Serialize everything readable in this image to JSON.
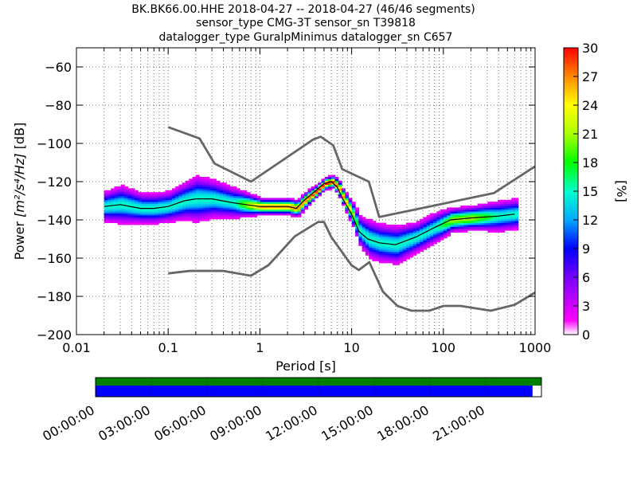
{
  "title": {
    "line1": "BK.BK66.00.HHE   2018-04-27 -- 2018-04-27  (46/46 segments)",
    "line2": "sensor_type CMG-3T sensor_sn T39818",
    "line3": "datalogger_type GuralpMinimus datalogger_sn C657"
  },
  "chart_data": {
    "type": "heatmap",
    "subtype": "ppsd",
    "x_scale": "log",
    "xlim": [
      0.01,
      1000
    ],
    "ylim": [
      -200,
      -50
    ],
    "xlabel": "Period [s]",
    "ylabel_prefix": "Power ",
    "ylabel_units": "[m²/s⁴/Hz]",
    "ylabel_suffix": " [dB]",
    "x_ticks": [
      0.01,
      0.1,
      1,
      10,
      100,
      1000
    ],
    "x_tick_labels": [
      "0.01",
      "0.1",
      "1",
      "10",
      "100",
      "1000"
    ],
    "y_ticks": [
      -200,
      -180,
      -160,
      -140,
      -120,
      -100,
      -80,
      -60
    ],
    "y_tick_labels": [
      "−200",
      "−180",
      "−160",
      "−140",
      "−120",
      "−100",
      "−80",
      "−60"
    ],
    "grid": true,
    "colorbar": {
      "label": "[%]",
      "range": [
        0,
        30
      ],
      "ticks": [
        0,
        3,
        6,
        9,
        12,
        15,
        18,
        21,
        24,
        27,
        30
      ],
      "tick_labels": [
        "0",
        "3",
        "6",
        "9",
        "12",
        "15",
        "18",
        "21",
        "24",
        "27",
        "30"
      ],
      "colormap": "pqlx"
    },
    "series": [
      {
        "role": "noise-model-high",
        "color": "#666666",
        "x": [
          0.1,
          0.22,
          0.32,
          0.8,
          3.8,
          4.6,
          6.3,
          7.9,
          15.4,
          20,
          354.8,
          1000
        ],
        "y": [
          -91.5,
          -97.4,
          -110.5,
          -120,
          -98,
          -96.5,
          -101,
          -113.5,
          -120,
          -138.5,
          -126,
          -112
        ]
      },
      {
        "role": "noise-model-low",
        "color": "#666666",
        "x": [
          0.1,
          0.17,
          0.4,
          0.8,
          1.24,
          2.4,
          4.3,
          5,
          6,
          10,
          12,
          15.6,
          21.9,
          31.6,
          45,
          70,
          101,
          154,
          328,
          600,
          1000
        ],
        "y": [
          -168,
          -166.7,
          -166.7,
          -169.2,
          -163.7,
          -148.6,
          -141.1,
          -141.1,
          -149.0,
          -163.8,
          -166.2,
          -162.1,
          -177.5,
          -185.0,
          -187.5,
          -187.5,
          -185.0,
          -185.0,
          -187.5,
          -184.4,
          -178.0
        ]
      },
      {
        "role": "mode",
        "color": "#000000",
        "x": [
          0.02,
          0.03,
          0.05,
          0.07,
          0.1,
          0.15,
          0.2,
          0.3,
          0.5,
          0.7,
          1,
          1.5,
          2,
          2.5,
          3,
          4,
          5,
          6,
          7,
          8,
          10,
          12,
          15,
          20,
          30,
          50,
          80,
          120,
          200,
          400,
          600
        ],
        "y": [
          -133,
          -132,
          -134,
          -134,
          -133,
          -130,
          -129,
          -129,
          -131,
          -132,
          -133,
          -133,
          -133,
          -134,
          -130,
          -125,
          -121,
          -120,
          -123,
          -129,
          -137,
          -146,
          -150,
          -152,
          -153,
          -149,
          -144,
          -140,
          -139,
          -138,
          -137
        ]
      }
    ],
    "histogram": {
      "x": [
        0.02,
        0.03,
        0.05,
        0.07,
        0.1,
        0.15,
        0.2,
        0.3,
        0.5,
        0.7,
        1,
        1.5,
        2,
        2.5,
        3,
        4,
        5,
        6,
        7,
        8,
        10,
        12,
        15,
        20,
        30,
        50,
        80,
        120,
        200,
        400,
        600
      ],
      "center": [
        -133,
        -132,
        -134,
        -134,
        -133,
        -130,
        -129,
        -129,
        -131,
        -132,
        -133,
        -133,
        -133,
        -134,
        -130,
        -125,
        -121,
        -120,
        -123,
        -129,
        -137,
        -146,
        -150,
        -152,
        -153,
        -149,
        -144,
        -140,
        -139,
        -138,
        -137
      ],
      "spread": [
        4,
        5,
        4,
        4,
        4,
        5,
        6,
        5,
        4,
        3,
        2,
        2,
        2,
        2,
        2,
        1.5,
        1.5,
        1.5,
        2,
        2,
        3,
        4,
        5,
        5,
        5,
        4,
        4,
        3,
        3,
        4,
        4
      ]
    },
    "time_coverage": {
      "tick_labels": [
        "00:00:00",
        "03:00:00",
        "06:00:00",
        "09:00:00",
        "12:00:00",
        "15:00:00",
        "18:00:00",
        "21:00:00"
      ],
      "data_fraction": 0.98,
      "data_color": "#0000ff",
      "segment_color": "#007f00"
    }
  }
}
